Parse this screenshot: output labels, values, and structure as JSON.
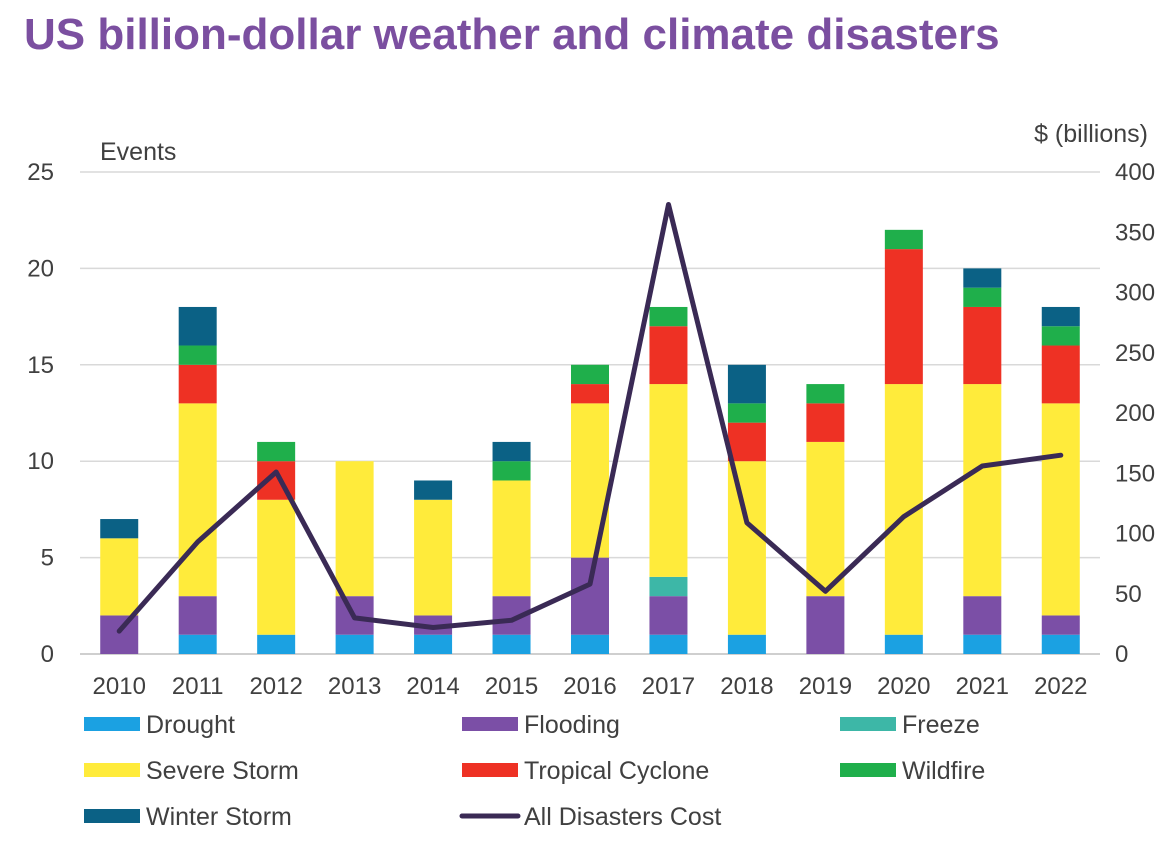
{
  "chart_data": {
    "type": "bar",
    "stacked": true,
    "title": "US billion-dollar weather and climate disasters",
    "categories": [
      "2010",
      "2011",
      "2012",
      "2013",
      "2014",
      "2015",
      "2016",
      "2017",
      "2018",
      "2019",
      "2020",
      "2021",
      "2022"
    ],
    "y_left": {
      "label": "Events",
      "range": [
        0,
        25
      ],
      "ticks": [
        0,
        5,
        10,
        15,
        20,
        25
      ]
    },
    "y_right": {
      "label": "$ (billions)",
      "range": [
        0,
        400
      ],
      "ticks": [
        0,
        50,
        100,
        150,
        200,
        250,
        300,
        350,
        400
      ]
    },
    "grid": true,
    "legend_position": "bottom",
    "series": [
      {
        "name": "Drought",
        "color": "#1BA1E2",
        "values": [
          0,
          1,
          1,
          1,
          1,
          1,
          1,
          1,
          1,
          0,
          1,
          1,
          1
        ]
      },
      {
        "name": "Flooding",
        "color": "#7B4FA6",
        "values": [
          2,
          2,
          0,
          2,
          1,
          2,
          4,
          2,
          0,
          3,
          0,
          2,
          1
        ]
      },
      {
        "name": "Freeze",
        "color": "#3DB7A7",
        "values": [
          0,
          0,
          0,
          0,
          0,
          0,
          0,
          1,
          0,
          0,
          0,
          0,
          0
        ]
      },
      {
        "name": "Severe Storm",
        "color": "#FFEB3B",
        "values": [
          4,
          10,
          7,
          7,
          6,
          6,
          8,
          10,
          9,
          8,
          13,
          11,
          11
        ]
      },
      {
        "name": "Tropical Cyclone",
        "color": "#EE3124",
        "values": [
          0,
          2,
          2,
          0,
          0,
          0,
          1,
          3,
          2,
          2,
          7,
          4,
          3
        ]
      },
      {
        "name": "Wildfire",
        "color": "#1FAF4B",
        "values": [
          0,
          1,
          1,
          0,
          0,
          1,
          1,
          1,
          1,
          1,
          1,
          1,
          1
        ]
      },
      {
        "name": "Winter Storm",
        "color": "#0B6185",
        "values": [
          1,
          2,
          0,
          0,
          1,
          1,
          0,
          0,
          2,
          0,
          0,
          1,
          1
        ]
      }
    ],
    "line": {
      "name": "All Disasters Cost",
      "color": "#3A2A55",
      "axis": "right",
      "values": [
        19,
        93,
        151,
        30,
        22,
        28,
        58,
        373,
        109,
        52,
        114,
        156,
        165
      ]
    }
  }
}
